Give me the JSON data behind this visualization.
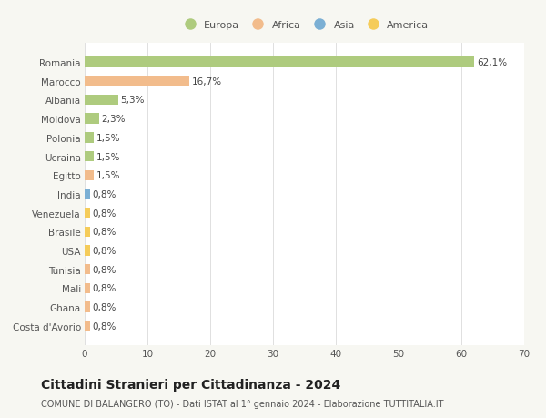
{
  "countries": [
    "Romania",
    "Marocco",
    "Albania",
    "Moldova",
    "Polonia",
    "Ucraina",
    "Egitto",
    "India",
    "Venezuela",
    "Brasile",
    "USA",
    "Tunisia",
    "Mali",
    "Ghana",
    "Costa d'Avorio"
  ],
  "values": [
    62.1,
    16.7,
    5.3,
    2.3,
    1.5,
    1.5,
    1.5,
    0.8,
    0.8,
    0.8,
    0.8,
    0.8,
    0.8,
    0.8,
    0.8
  ],
  "labels": [
    "62,1%",
    "16,7%",
    "5,3%",
    "2,3%",
    "1,5%",
    "1,5%",
    "1,5%",
    "0,8%",
    "0,8%",
    "0,8%",
    "0,8%",
    "0,8%",
    "0,8%",
    "0,8%",
    "0,8%"
  ],
  "colors": [
    "#aecb7e",
    "#f2bc8c",
    "#aecb7e",
    "#aecb7e",
    "#aecb7e",
    "#aecb7e",
    "#f2bc8c",
    "#7bafd4",
    "#f5cc5a",
    "#f5cc5a",
    "#f5cc5a",
    "#f2bc8c",
    "#f2bc8c",
    "#f2bc8c",
    "#f2bc8c"
  ],
  "legend_labels": [
    "Europa",
    "Africa",
    "Asia",
    "America"
  ],
  "legend_colors": [
    "#aecb7e",
    "#f2bc8c",
    "#7bafd4",
    "#f5cc5a"
  ],
  "title": "Cittadini Stranieri per Cittadinanza - 2024",
  "subtitle": "COMUNE DI BALANGERO (TO) - Dati ISTAT al 1° gennaio 2024 - Elaborazione TUTTITALIA.IT",
  "xlim": [
    0,
    70
  ],
  "xticks": [
    0,
    10,
    20,
    30,
    40,
    50,
    60,
    70
  ],
  "background_color": "#f7f7f2",
  "plot_background": "#ffffff",
  "grid_color": "#e0e0e0",
  "bar_height": 0.55,
  "label_fontsize": 7.5,
  "tick_fontsize": 7.5,
  "title_fontsize": 10,
  "subtitle_fontsize": 7
}
